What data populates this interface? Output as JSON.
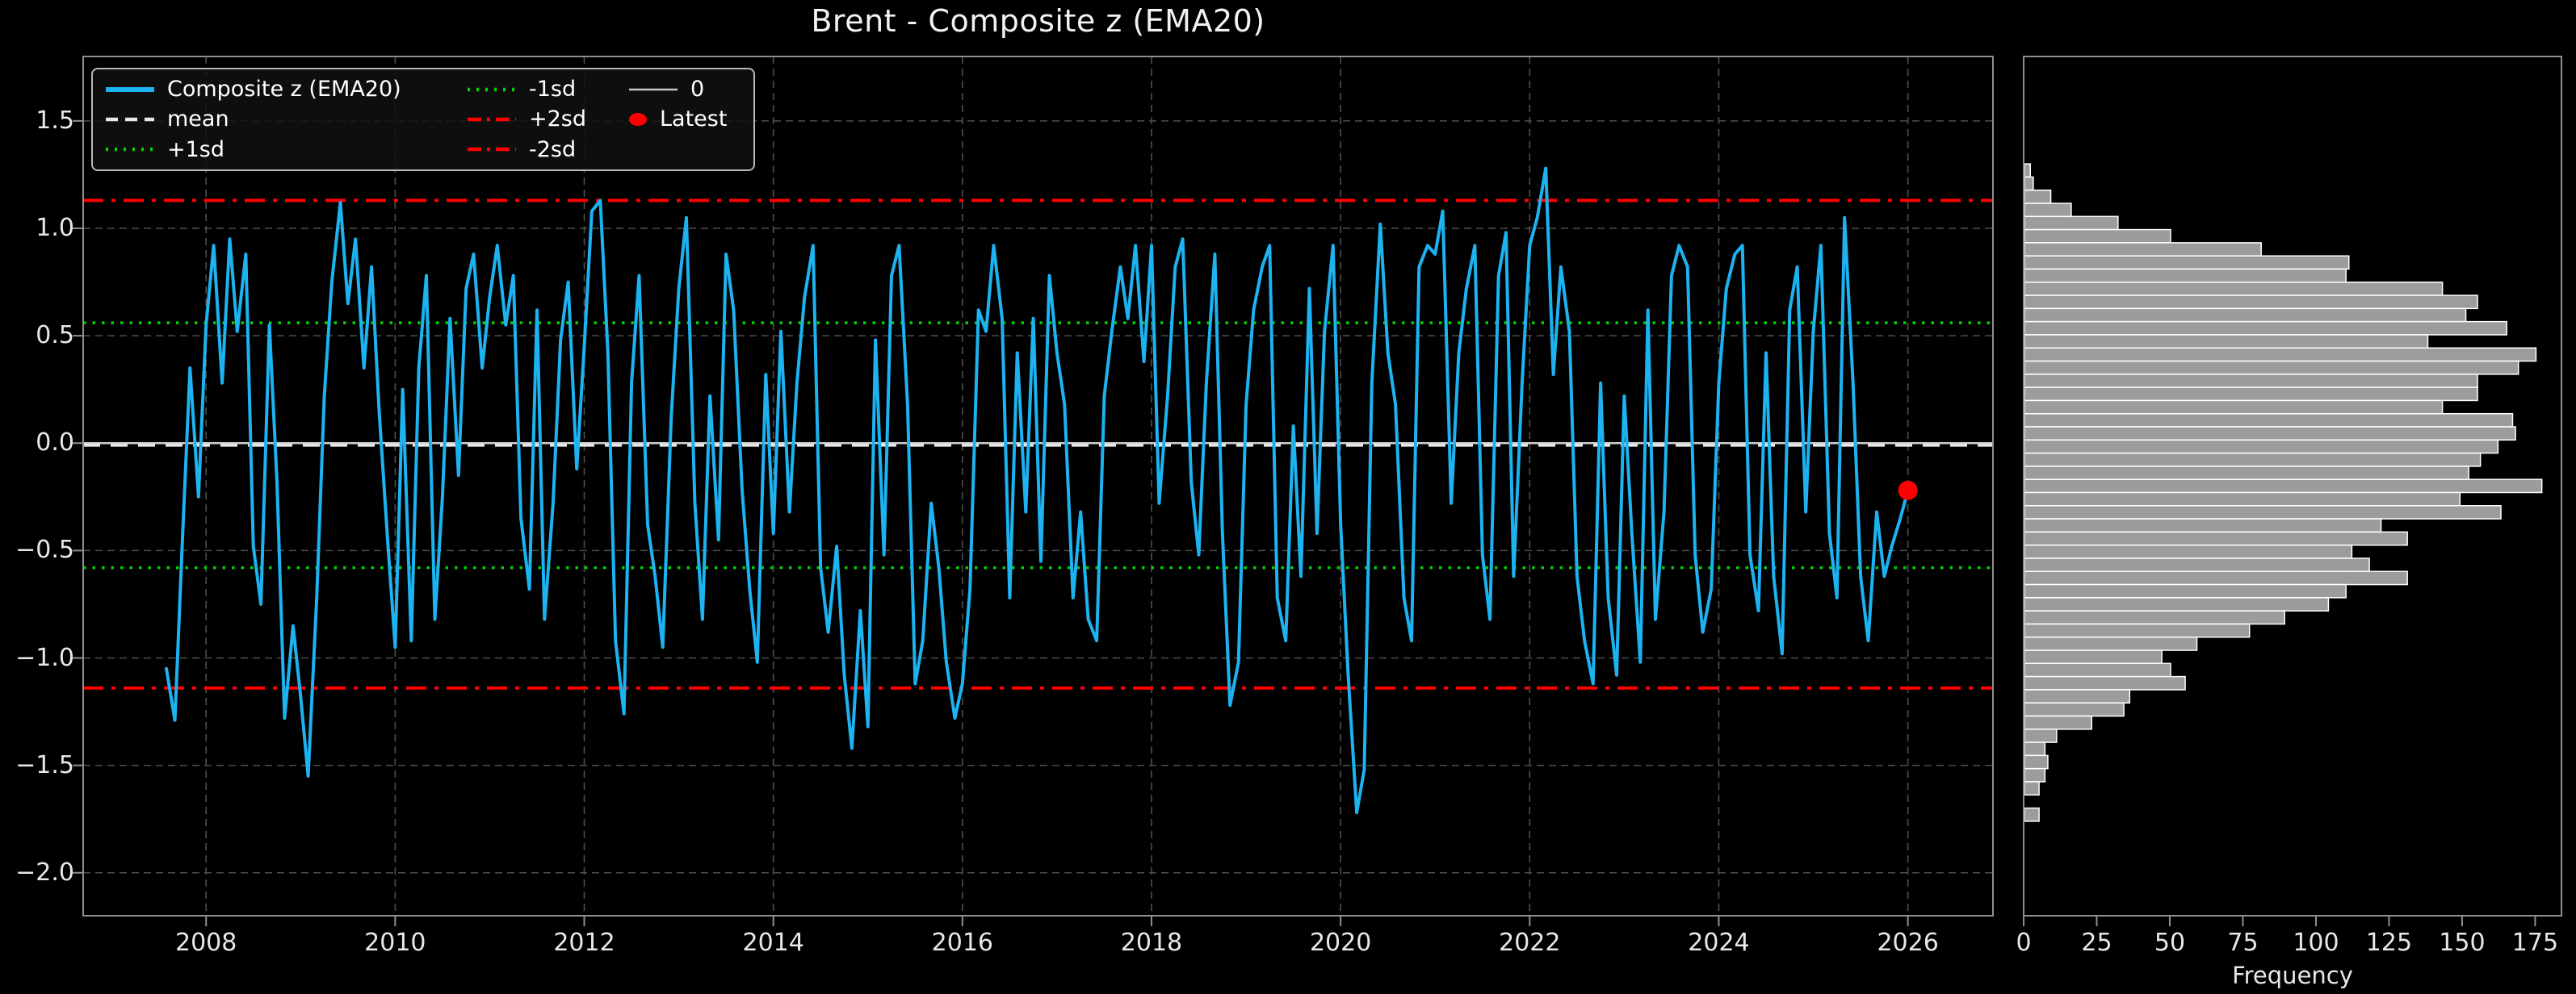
{
  "title": "Brent - Composite z (EMA20)",
  "legend": {
    "entries": [
      {
        "label": "Composite z (EMA20)"
      },
      {
        "label": "mean"
      },
      {
        "label": "+1sd"
      },
      {
        "label": "-1sd"
      },
      {
        "label": "+2sd"
      },
      {
        "label": "-2sd"
      },
      {
        "label": "0"
      },
      {
        "label": "Latest"
      }
    ]
  },
  "colors": {
    "background": "#000000",
    "series": "#1db2f0",
    "mean": "#e8e8e8",
    "sd1": "#00d400",
    "sd2": "#ff0000",
    "zero": "#cfcfcf",
    "latest": "#ff0000",
    "hist_fill": "#9c9c9c",
    "hist_edge": "#ffffff",
    "grid": "#4f4f4f",
    "spine": "#8f8f8f",
    "tick_label": "#e8e8e8",
    "title": "#f2f2f2"
  },
  "chart_data": [
    {
      "type": "line",
      "title": "Brent - Composite z (EMA20)",
      "xlabel": "",
      "ylabel": "",
      "xlim": [
        2006.7,
        2026.9
      ],
      "ylim": [
        -2.2,
        1.8
      ],
      "xticks": [
        2008,
        2010,
        2012,
        2014,
        2016,
        2018,
        2020,
        2022,
        2024,
        2026
      ],
      "yticks": [
        1.5,
        1.0,
        0.5,
        0.0,
        -0.5,
        -1.0,
        -1.5,
        -2.0
      ],
      "grid": true,
      "legend_position": "upper left",
      "hlines": {
        "mean": -0.01,
        "plus1sd": 0.56,
        "minus1sd": -0.58,
        "plus2sd": 1.13,
        "minus2sd": -1.14,
        "zero": 0.0
      },
      "latest_point": {
        "x": 2026.0,
        "y": -0.22
      },
      "series": [
        {
          "name": "Composite z (EMA20)",
          "points": [
            [
              2007.58,
              -1.05
            ],
            [
              2007.67,
              -1.29
            ],
            [
              2007.75,
              -0.45
            ],
            [
              2007.83,
              0.35
            ],
            [
              2007.92,
              -0.25
            ],
            [
              2008.0,
              0.55
            ],
            [
              2008.08,
              0.92
            ],
            [
              2008.17,
              0.28
            ],
            [
              2008.25,
              0.95
            ],
            [
              2008.33,
              0.52
            ],
            [
              2008.42,
              0.88
            ],
            [
              2008.5,
              -0.48
            ],
            [
              2008.58,
              -0.75
            ],
            [
              2008.67,
              0.55
            ],
            [
              2008.75,
              -0.18
            ],
            [
              2008.83,
              -1.28
            ],
            [
              2008.92,
              -0.85
            ],
            [
              2009.0,
              -1.18
            ],
            [
              2009.08,
              -1.55
            ],
            [
              2009.17,
              -0.72
            ],
            [
              2009.25,
              0.22
            ],
            [
              2009.33,
              0.75
            ],
            [
              2009.42,
              1.12
            ],
            [
              2009.5,
              0.65
            ],
            [
              2009.58,
              0.95
            ],
            [
              2009.67,
              0.35
            ],
            [
              2009.75,
              0.82
            ],
            [
              2009.83,
              0.15
            ],
            [
              2009.92,
              -0.45
            ],
            [
              2010.0,
              -0.95
            ],
            [
              2010.08,
              0.25
            ],
            [
              2010.17,
              -0.92
            ],
            [
              2010.25,
              0.35
            ],
            [
              2010.33,
              0.78
            ],
            [
              2010.42,
              -0.82
            ],
            [
              2010.5,
              -0.25
            ],
            [
              2010.58,
              0.58
            ],
            [
              2010.67,
              -0.15
            ],
            [
              2010.75,
              0.72
            ],
            [
              2010.83,
              0.88
            ],
            [
              2010.92,
              0.35
            ],
            [
              2011.0,
              0.68
            ],
            [
              2011.08,
              0.92
            ],
            [
              2011.17,
              0.55
            ],
            [
              2011.25,
              0.78
            ],
            [
              2011.33,
              -0.35
            ],
            [
              2011.42,
              -0.68
            ],
            [
              2011.5,
              0.62
            ],
            [
              2011.58,
              -0.82
            ],
            [
              2011.67,
              -0.28
            ],
            [
              2011.75,
              0.48
            ],
            [
              2011.83,
              0.75
            ],
            [
              2011.92,
              -0.12
            ],
            [
              2012.0,
              0.45
            ],
            [
              2012.08,
              1.08
            ],
            [
              2012.17,
              1.13
            ],
            [
              2012.25,
              0.42
            ],
            [
              2012.33,
              -0.92
            ],
            [
              2012.42,
              -1.26
            ],
            [
              2012.5,
              0.28
            ],
            [
              2012.58,
              0.78
            ],
            [
              2012.67,
              -0.38
            ],
            [
              2012.75,
              -0.62
            ],
            [
              2012.83,
              -0.95
            ],
            [
              2012.92,
              0.12
            ],
            [
              2013.0,
              0.72
            ],
            [
              2013.08,
              1.05
            ],
            [
              2013.17,
              -0.28
            ],
            [
              2013.25,
              -0.82
            ],
            [
              2013.33,
              0.22
            ],
            [
              2013.42,
              -0.45
            ],
            [
              2013.5,
              0.88
            ],
            [
              2013.58,
              0.62
            ],
            [
              2013.67,
              -0.22
            ],
            [
              2013.75,
              -0.68
            ],
            [
              2013.83,
              -1.02
            ],
            [
              2013.92,
              0.32
            ],
            [
              2014.0,
              -0.42
            ],
            [
              2014.08,
              0.52
            ],
            [
              2014.17,
              -0.32
            ],
            [
              2014.25,
              0.28
            ],
            [
              2014.33,
              0.68
            ],
            [
              2014.42,
              0.92
            ],
            [
              2014.5,
              -0.58
            ],
            [
              2014.58,
              -0.88
            ],
            [
              2014.67,
              -0.48
            ],
            [
              2014.75,
              -1.08
            ],
            [
              2014.83,
              -1.42
            ],
            [
              2014.92,
              -0.78
            ],
            [
              2015.0,
              -1.32
            ],
            [
              2015.08,
              0.48
            ],
            [
              2015.17,
              -0.52
            ],
            [
              2015.25,
              0.78
            ],
            [
              2015.33,
              0.92
            ],
            [
              2015.42,
              0.18
            ],
            [
              2015.5,
              -1.12
            ],
            [
              2015.58,
              -0.92
            ],
            [
              2015.67,
              -0.28
            ],
            [
              2015.75,
              -0.58
            ],
            [
              2015.83,
              -1.02
            ],
            [
              2015.92,
              -1.28
            ],
            [
              2016.0,
              -1.12
            ],
            [
              2016.08,
              -0.68
            ],
            [
              2016.17,
              0.62
            ],
            [
              2016.25,
              0.52
            ],
            [
              2016.33,
              0.92
            ],
            [
              2016.42,
              0.58
            ],
            [
              2016.5,
              -0.72
            ],
            [
              2016.58,
              0.42
            ],
            [
              2016.67,
              -0.32
            ],
            [
              2016.75,
              0.58
            ],
            [
              2016.83,
              -0.55
            ],
            [
              2016.92,
              0.78
            ],
            [
              2017.0,
              0.42
            ],
            [
              2017.08,
              0.18
            ],
            [
              2017.17,
              -0.72
            ],
            [
              2017.25,
              -0.32
            ],
            [
              2017.33,
              -0.82
            ],
            [
              2017.42,
              -0.92
            ],
            [
              2017.5,
              0.22
            ],
            [
              2017.58,
              0.52
            ],
            [
              2017.67,
              0.82
            ],
            [
              2017.75,
              0.58
            ],
            [
              2017.83,
              0.92
            ],
            [
              2017.92,
              0.38
            ],
            [
              2018.0,
              0.92
            ],
            [
              2018.08,
              -0.28
            ],
            [
              2018.17,
              0.22
            ],
            [
              2018.25,
              0.82
            ],
            [
              2018.33,
              0.95
            ],
            [
              2018.42,
              -0.18
            ],
            [
              2018.5,
              -0.52
            ],
            [
              2018.58,
              0.28
            ],
            [
              2018.67,
              0.88
            ],
            [
              2018.75,
              -0.42
            ],
            [
              2018.83,
              -1.22
            ],
            [
              2018.92,
              -1.02
            ],
            [
              2019.0,
              0.18
            ],
            [
              2019.08,
              0.62
            ],
            [
              2019.17,
              0.82
            ],
            [
              2019.25,
              0.92
            ],
            [
              2019.33,
              -0.72
            ],
            [
              2019.42,
              -0.92
            ],
            [
              2019.5,
              0.08
            ],
            [
              2019.58,
              -0.62
            ],
            [
              2019.67,
              0.72
            ],
            [
              2019.75,
              -0.42
            ],
            [
              2019.83,
              0.52
            ],
            [
              2019.92,
              0.92
            ],
            [
              2020.0,
              -0.38
            ],
            [
              2020.08,
              -1.08
            ],
            [
              2020.17,
              -1.72
            ],
            [
              2020.25,
              -1.52
            ],
            [
              2020.33,
              0.28
            ],
            [
              2020.42,
              1.02
            ],
            [
              2020.5,
              0.42
            ],
            [
              2020.58,
              0.18
            ],
            [
              2020.67,
              -0.72
            ],
            [
              2020.75,
              -0.92
            ],
            [
              2020.83,
              0.82
            ],
            [
              2020.92,
              0.92
            ],
            [
              2021.0,
              0.88
            ],
            [
              2021.08,
              1.08
            ],
            [
              2021.17,
              -0.28
            ],
            [
              2021.25,
              0.42
            ],
            [
              2021.33,
              0.72
            ],
            [
              2021.42,
              0.92
            ],
            [
              2021.5,
              -0.52
            ],
            [
              2021.58,
              -0.82
            ],
            [
              2021.67,
              0.78
            ],
            [
              2021.75,
              0.98
            ],
            [
              2021.83,
              -0.62
            ],
            [
              2021.92,
              0.28
            ],
            [
              2022.0,
              0.92
            ],
            [
              2022.08,
              1.05
            ],
            [
              2022.17,
              1.28
            ],
            [
              2022.25,
              0.32
            ],
            [
              2022.33,
              0.82
            ],
            [
              2022.42,
              0.52
            ],
            [
              2022.5,
              -0.62
            ],
            [
              2022.58,
              -0.92
            ],
            [
              2022.67,
              -1.12
            ],
            [
              2022.75,
              0.28
            ],
            [
              2022.83,
              -0.72
            ],
            [
              2022.92,
              -1.08
            ],
            [
              2023.0,
              0.22
            ],
            [
              2023.08,
              -0.42
            ],
            [
              2023.17,
              -1.02
            ],
            [
              2023.25,
              0.62
            ],
            [
              2023.33,
              -0.82
            ],
            [
              2023.42,
              -0.32
            ],
            [
              2023.5,
              0.78
            ],
            [
              2023.58,
              0.92
            ],
            [
              2023.67,
              0.82
            ],
            [
              2023.75,
              -0.52
            ],
            [
              2023.83,
              -0.88
            ],
            [
              2023.92,
              -0.68
            ],
            [
              2024.0,
              0.28
            ],
            [
              2024.08,
              0.72
            ],
            [
              2024.17,
              0.88
            ],
            [
              2024.25,
              0.92
            ],
            [
              2024.33,
              -0.52
            ],
            [
              2024.42,
              -0.78
            ],
            [
              2024.5,
              0.42
            ],
            [
              2024.58,
              -0.62
            ],
            [
              2024.67,
              -0.98
            ],
            [
              2024.75,
              0.62
            ],
            [
              2024.83,
              0.82
            ],
            [
              2024.92,
              -0.32
            ],
            [
              2025.0,
              0.52
            ],
            [
              2025.08,
              0.92
            ],
            [
              2025.17,
              -0.42
            ],
            [
              2025.25,
              -0.72
            ],
            [
              2025.33,
              1.05
            ],
            [
              2025.42,
              0.28
            ],
            [
              2025.5,
              -0.62
            ],
            [
              2025.58,
              -0.92
            ],
            [
              2025.67,
              -0.32
            ],
            [
              2025.75,
              -0.62
            ],
            [
              2025.83,
              -0.48
            ],
            [
              2025.92,
              -0.35
            ],
            [
              2026.0,
              -0.22
            ]
          ]
        }
      ]
    },
    {
      "type": "bar",
      "orientation": "horizontal",
      "title": "",
      "xlabel": "Frequency",
      "ylabel": "",
      "xlim": [
        0,
        184
      ],
      "xticks": [
        0,
        25,
        50,
        75,
        100,
        125,
        150,
        175
      ],
      "grid": false,
      "bins": {
        "z_top": 1.3,
        "z_bottom": -1.76,
        "count": 50
      },
      "frequencies": [
        2,
        3,
        9,
        16,
        32,
        50,
        81,
        111,
        110,
        143,
        155,
        151,
        165,
        138,
        175,
        169,
        155,
        155,
        143,
        167,
        168,
        162,
        156,
        152,
        177,
        149,
        163,
        122,
        131,
        112,
        118,
        131,
        110,
        104,
        89,
        77,
        59,
        47,
        50,
        55,
        36,
        34,
        23,
        11,
        7,
        8,
        7,
        5,
        0,
        5
      ]
    }
  ]
}
